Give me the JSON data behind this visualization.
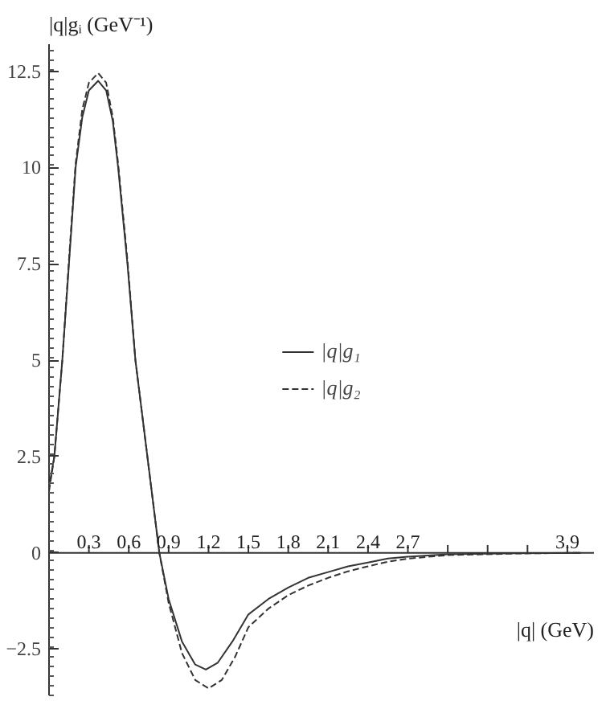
{
  "chart_data": {
    "type": "line",
    "xlabel": "|q| (GeV)",
    "ylabel": "|q|gᵢ (GeV⁻¹)",
    "xlim": [
      0,
      4.1
    ],
    "ylim": [
      -3.7,
      13.2
    ],
    "xticks": [
      0.3,
      0.6,
      0.9,
      1.2,
      1.5,
      1.8,
      2.1,
      2.4,
      2.7,
      {
        "value": 3.0,
        "label": null
      },
      {
        "value": 3.3,
        "label": null
      },
      {
        "value": 3.6,
        "label": null
      },
      3.9
    ],
    "yticks": [
      -2.5,
      0,
      2.5,
      5,
      7.5,
      10,
      12.5
    ],
    "grid": false,
    "legend": "center",
    "series": [
      {
        "name": "|q|g₁",
        "color": "#333333",
        "line_style": "solid",
        "x": [
          0,
          0.04,
          0.1,
          0.15,
          0.2,
          0.25,
          0.3,
          0.37,
          0.43,
          0.48,
          0.52,
          0.59,
          0.65,
          0.74,
          0.83,
          0.9,
          1.0,
          1.1,
          1.18,
          1.27,
          1.38,
          1.5,
          1.65,
          1.8,
          1.95,
          2.1,
          2.25,
          2.4,
          2.55,
          2.7,
          3.0,
          3.5,
          4.0
        ],
        "values": [
          1.7,
          2.5,
          5,
          7.5,
          10,
          11.3,
          12.0,
          12.25,
          12.0,
          11.2,
          10,
          7.5,
          5,
          2.5,
          0,
          -1.2,
          -2.3,
          -2.9,
          -3.03,
          -2.85,
          -2.3,
          -1.6,
          -1.2,
          -0.9,
          -0.65,
          -0.5,
          -0.35,
          -0.25,
          -0.15,
          -0.1,
          -0.04,
          -0.01,
          0
        ]
      },
      {
        "name": "|q|g₂",
        "color": "#333333",
        "line_style": "dashed",
        "x": [
          0,
          0.04,
          0.1,
          0.15,
          0.2,
          0.25,
          0.3,
          0.37,
          0.43,
          0.48,
          0.52,
          0.59,
          0.65,
          0.74,
          0.83,
          0.9,
          1.0,
          1.1,
          1.2,
          1.3,
          1.4,
          1.5,
          1.65,
          1.8,
          1.95,
          2.1,
          2.25,
          2.4,
          2.55,
          2.7,
          3.0,
          3.5,
          4.0
        ],
        "values": [
          1.6,
          2.5,
          5,
          7.6,
          10.1,
          11.5,
          12.2,
          12.45,
          12.2,
          11.3,
          10.1,
          7.6,
          5,
          2.5,
          0,
          -1.3,
          -2.6,
          -3.3,
          -3.52,
          -3.3,
          -2.7,
          -1.93,
          -1.45,
          -1.1,
          -0.85,
          -0.65,
          -0.48,
          -0.35,
          -0.23,
          -0.15,
          -0.06,
          -0.02,
          0
        ]
      }
    ]
  }
}
